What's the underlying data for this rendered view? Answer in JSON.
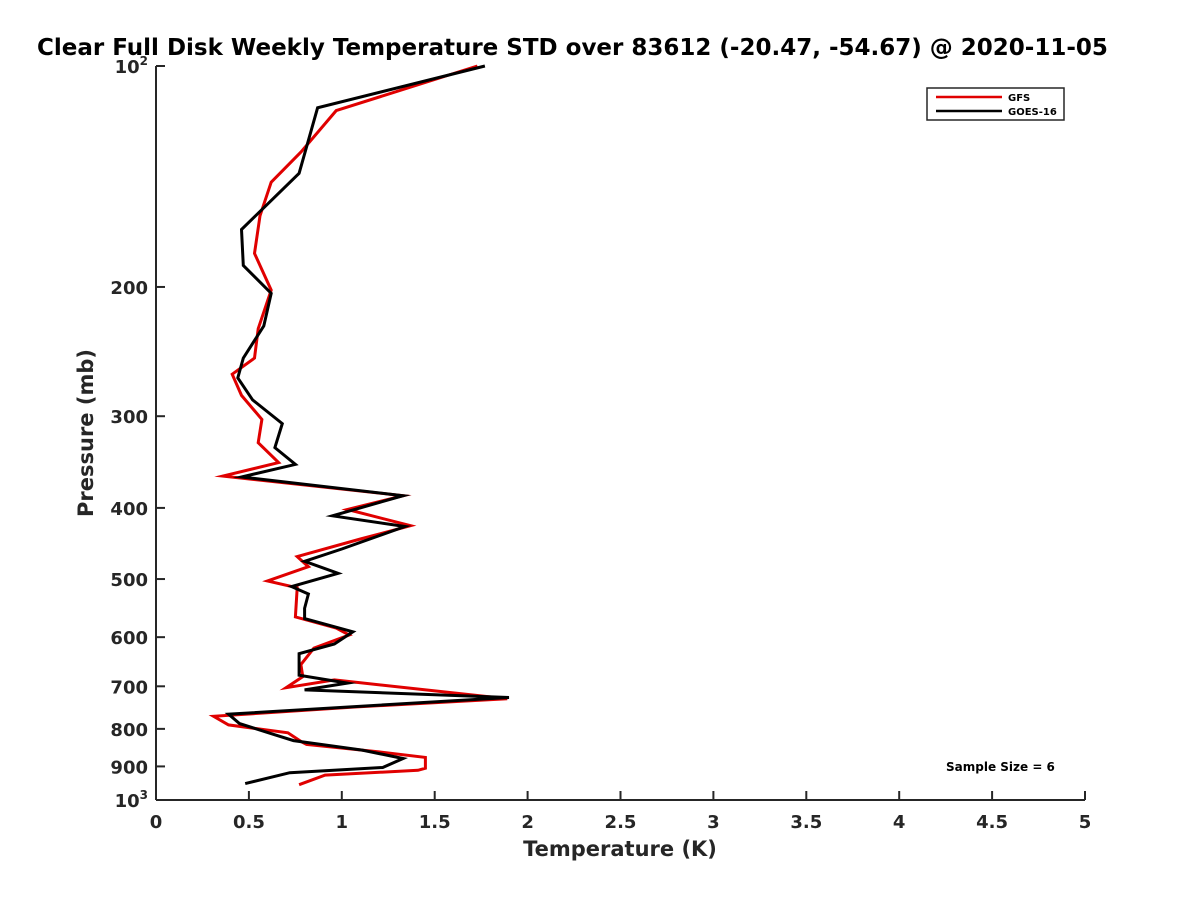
{
  "chart_data": {
    "type": "line",
    "title": "Clear Full Disk Weekly Temperature STD over 83612 (-20.47, -54.67) @ 2020-11-05",
    "xlabel": "Temperature (K)",
    "ylabel": "Pressure (mb)",
    "xlim": [
      0,
      5
    ],
    "ylim": [
      100,
      1000
    ],
    "y_scale": "log",
    "y_reversed": true,
    "x_ticks": [
      "0",
      "0.5",
      "1",
      "1.5",
      "2",
      "2.5",
      "3",
      "3.5",
      "4",
      "4.5",
      "5"
    ],
    "y_ticks": [
      {
        "value": 100,
        "base": "10",
        "exp": "2"
      },
      {
        "value": 200,
        "label": "200"
      },
      {
        "value": 300,
        "label": "300"
      },
      {
        "value": 400,
        "label": "400"
      },
      {
        "value": 500,
        "label": "500"
      },
      {
        "value": 600,
        "label": "600"
      },
      {
        "value": 700,
        "label": "700"
      },
      {
        "value": 800,
        "label": "800"
      },
      {
        "value": 900,
        "label": "900"
      },
      {
        "value": 1000,
        "base": "10",
        "exp": "3"
      }
    ],
    "legend_position": "top-right",
    "annotation": "Sample Size = 6",
    "series": [
      {
        "name": "GFS",
        "color": "#e00000",
        "points": [
          [
            1.73,
            100
          ],
          [
            0.97,
            115
          ],
          [
            0.78,
            131
          ],
          [
            0.62,
            144
          ],
          [
            0.56,
            160
          ],
          [
            0.53,
            180
          ],
          [
            0.62,
            202
          ],
          [
            0.55,
            228
          ],
          [
            0.53,
            250
          ],
          [
            0.41,
            263
          ],
          [
            0.46,
            281
          ],
          [
            0.57,
            303
          ],
          [
            0.55,
            326
          ],
          [
            0.66,
            347
          ],
          [
            0.36,
            362
          ],
          [
            1.33,
            385
          ],
          [
            1.03,
            402
          ],
          [
            1.37,
            423
          ],
          [
            1.1,
            441
          ],
          [
            0.76,
            466
          ],
          [
            0.82,
            481
          ],
          [
            0.6,
            503
          ],
          [
            0.76,
            514
          ],
          [
            0.75,
            563
          ],
          [
            0.97,
            583
          ],
          [
            1.04,
            596
          ],
          [
            0.85,
            621
          ],
          [
            0.78,
            654
          ],
          [
            0.79,
            679
          ],
          [
            0.7,
            703
          ],
          [
            0.96,
            686
          ],
          [
            1.89,
            728
          ],
          [
            1.07,
            747
          ],
          [
            0.31,
            769
          ],
          [
            0.39,
            790
          ],
          [
            0.71,
            810
          ],
          [
            0.78,
            832
          ],
          [
            0.81,
            840
          ],
          [
            1.2,
            860
          ],
          [
            1.45,
            875
          ],
          [
            1.45,
            905
          ],
          [
            1.41,
            911
          ],
          [
            0.91,
            925
          ],
          [
            0.77,
            953
          ]
        ]
      },
      {
        "name": "GOES-16",
        "color": "#000000",
        "points": [
          [
            1.77,
            100
          ],
          [
            0.87,
            114
          ],
          [
            0.77,
            140
          ],
          [
            0.46,
            167
          ],
          [
            0.47,
            187
          ],
          [
            0.62,
            204
          ],
          [
            0.58,
            226
          ],
          [
            0.47,
            250
          ],
          [
            0.44,
            266
          ],
          [
            0.52,
            285
          ],
          [
            0.68,
            307
          ],
          [
            0.64,
            331
          ],
          [
            0.75,
            349
          ],
          [
            0.46,
            363
          ],
          [
            1.33,
            385
          ],
          [
            0.95,
            410
          ],
          [
            1.34,
            424
          ],
          [
            1.0,
            455
          ],
          [
            0.8,
            473
          ],
          [
            0.98,
            491
          ],
          [
            0.73,
            512
          ],
          [
            0.82,
            524
          ],
          [
            0.8,
            548
          ],
          [
            0.8,
            566
          ],
          [
            1.06,
            590
          ],
          [
            0.96,
            613
          ],
          [
            0.77,
            632
          ],
          [
            0.77,
            676
          ],
          [
            1.03,
            693
          ],
          [
            0.8,
            708
          ],
          [
            1.9,
            725
          ],
          [
            1.07,
            746
          ],
          [
            0.39,
            764
          ],
          [
            0.45,
            787
          ],
          [
            0.64,
            815
          ],
          [
            0.74,
            830
          ],
          [
            1.11,
            855
          ],
          [
            1.33,
            878
          ],
          [
            1.22,
            903
          ],
          [
            0.72,
            918
          ],
          [
            0.48,
            950
          ]
        ]
      }
    ]
  }
}
